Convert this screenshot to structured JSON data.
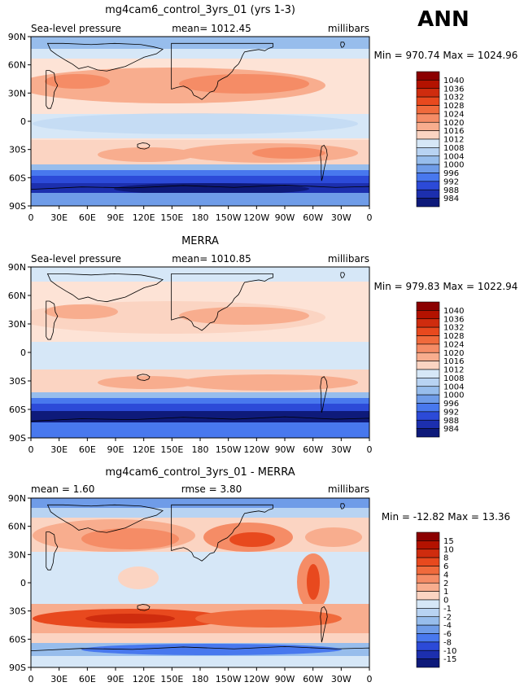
{
  "season": "ANN",
  "panels": [
    {
      "title": "mg4cam6_control_3yrs_01 (yrs 1-3)",
      "left_label": "Sea-level pressure",
      "center_label": "mean=  1012.45",
      "right_label": "millibars",
      "min_max": "Min = 970.74  Max = 1024.96",
      "colorbar_levels": [
        "1040",
        "1036",
        "1032",
        "1028",
        "1024",
        "1020",
        "1016",
        "1012",
        "1008",
        "1004",
        "1000",
        "996",
        "992",
        "988",
        "984"
      ],
      "colors": [
        "#8b0000",
        "#b31200",
        "#cf2c0e",
        "#e8491e",
        "#f06a3c",
        "#f58c66",
        "#f8ad8e",
        "#fbd4c2",
        "#d6e7f7",
        "#b8d3f2",
        "#97bdec",
        "#6f9ce8",
        "#4878ee",
        "#2c4ad8",
        "#1c2fae",
        "#0e1a7a"
      ]
    },
    {
      "title": "MERRA",
      "left_label": "Sea-level pressure",
      "center_label": "mean=  1010.85",
      "right_label": "millibars",
      "min_max": "Min = 979.83  Max = 1022.94",
      "colorbar_levels": [
        "1040",
        "1036",
        "1032",
        "1028",
        "1024",
        "1020",
        "1016",
        "1012",
        "1008",
        "1004",
        "1000",
        "996",
        "992",
        "988",
        "984"
      ],
      "colors": [
        "#8b0000",
        "#b31200",
        "#cf2c0e",
        "#e8491e",
        "#f06a3c",
        "#f58c66",
        "#f8ad8e",
        "#fbd4c2",
        "#d6e7f7",
        "#b8d3f2",
        "#97bdec",
        "#6f9ce8",
        "#4878ee",
        "#2c4ad8",
        "#1c2fae",
        "#0e1a7a"
      ]
    },
    {
      "title": "mg4cam6_control_3yrs_01 - MERRA",
      "left_label": "mean =     1.60",
      "center_label": "rmse =      3.80",
      "right_label": "millibars",
      "min_max": "Min = -12.82  Max =  13.36",
      "colorbar_levels": [
        "15",
        "10",
        "8",
        "6",
        "4",
        "2",
        "1",
        "0",
        "-1",
        "-2",
        "-4",
        "-6",
        "-8",
        "-10",
        "-15"
      ],
      "colors": [
        "#8b0000",
        "#b31200",
        "#cf2c0e",
        "#e8491e",
        "#f06a3c",
        "#f58c66",
        "#f8ad8e",
        "#fbd4c2",
        "#d6e7f7",
        "#b8d3f2",
        "#97bdec",
        "#6f9ce8",
        "#4878ee",
        "#2c4ad8",
        "#1c2fae",
        "#0e1a7a"
      ]
    }
  ],
  "lat_ticks": [
    "90N",
    "60N",
    "30N",
    "0",
    "30S",
    "60S",
    "90S"
  ],
  "lon_ticks": [
    "0",
    "30E",
    "60E",
    "90E",
    "120E",
    "150E",
    "180",
    "150W",
    "120W",
    "90W",
    "60W",
    "30W",
    "0"
  ]
}
